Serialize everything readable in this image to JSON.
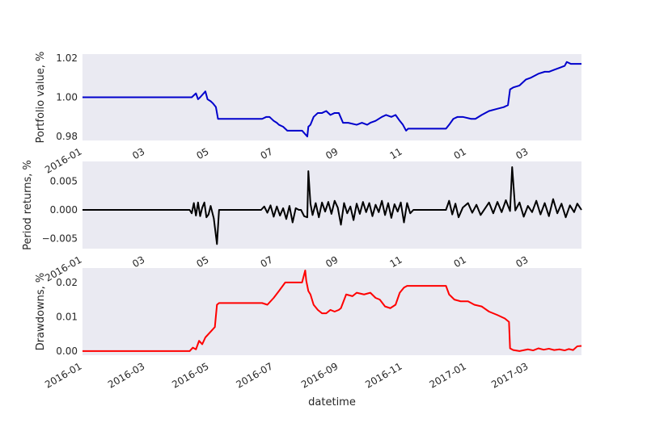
{
  "chart_data": [
    {
      "type": "line",
      "ylabel": "Portfolio value, %",
      "ylim": [
        0.978,
        1.022
      ],
      "yticks": [
        0.98,
        1.0,
        1.02
      ],
      "ytick_labels": [
        "0.98",
        "1.00",
        "1.02"
      ],
      "xlim": [
        "2016-01-01",
        "2017-04-20"
      ],
      "xticks": [
        "2016-01-01",
        "2016-03-01",
        "2016-05-01",
        "2016-07-01",
        "2016-09-01",
        "2016-11-01",
        "2017-01-01",
        "2017-03-01"
      ],
      "xtick_labels": [
        "2016-01",
        "03",
        "05",
        "07",
        "09",
        "11",
        "01",
        "03"
      ],
      "grid": false,
      "color": "#0000cc",
      "x": [
        "2016-01-01",
        "2016-04-14",
        "2016-04-18",
        "2016-04-20",
        "2016-04-22",
        "2016-04-27",
        "2016-04-29",
        "2016-05-02",
        "2016-05-04",
        "2016-05-07",
        "2016-05-09",
        "2016-05-12",
        "2016-06-20",
        "2016-06-24",
        "2016-06-27",
        "2016-07-01",
        "2016-07-04",
        "2016-07-06",
        "2016-07-10",
        "2016-07-14",
        "2016-07-20",
        "2016-07-26",
        "2016-07-28",
        "2016-08-02",
        "2016-08-03",
        "2016-08-05",
        "2016-08-08",
        "2016-08-12",
        "2016-08-16",
        "2016-08-20",
        "2016-08-24",
        "2016-08-28",
        "2016-09-01",
        "2016-09-05",
        "2016-09-10",
        "2016-09-18",
        "2016-09-23",
        "2016-09-28",
        "2016-10-01",
        "2016-10-06",
        "2016-10-12",
        "2016-10-16",
        "2016-10-21",
        "2016-10-25",
        "2016-10-29",
        "2016-11-01",
        "2016-11-04",
        "2016-11-06",
        "2016-11-10",
        "2016-12-12",
        "2016-12-15",
        "2016-12-19",
        "2016-12-23",
        "2016-12-28",
        "2017-01-05",
        "2017-01-09",
        "2017-01-15",
        "2017-01-22",
        "2017-01-29",
        "2017-02-05",
        "2017-02-09",
        "2017-02-11",
        "2017-02-14",
        "2017-02-20",
        "2017-02-26",
        "2017-03-03",
        "2017-03-10",
        "2017-03-16",
        "2017-03-20",
        "2017-03-25",
        "2017-03-30",
        "2017-04-04",
        "2017-04-06",
        "2017-04-10",
        "2017-04-14",
        "2017-04-20"
      ],
      "values": [
        1.0,
        1.0,
        1.002,
        0.999,
        1.0,
        1.003,
        0.999,
        0.998,
        0.997,
        0.995,
        0.989,
        0.989,
        0.989,
        0.99,
        0.99,
        0.988,
        0.987,
        0.986,
        0.985,
        0.983,
        0.983,
        0.983,
        0.983,
        0.98,
        0.985,
        0.986,
        0.99,
        0.992,
        0.992,
        0.993,
        0.991,
        0.992,
        0.992,
        0.987,
        0.987,
        0.986,
        0.987,
        0.986,
        0.987,
        0.988,
        0.99,
        0.991,
        0.99,
        0.991,
        0.988,
        0.986,
        0.983,
        0.984,
        0.984,
        0.984,
        0.986,
        0.989,
        0.99,
        0.99,
        0.989,
        0.989,
        0.991,
        0.993,
        0.994,
        0.995,
        0.996,
        1.004,
        1.005,
        1.006,
        1.009,
        1.01,
        1.012,
        1.013,
        1.013,
        1.014,
        1.015,
        1.016,
        1.018,
        1.017,
        1.017,
        1.017
      ]
    },
    {
      "type": "line",
      "ylabel": "Period returns, %",
      "ylim": [
        -0.0068,
        0.0085
      ],
      "yticks": [
        -0.005,
        0.0,
        0.005
      ],
      "ytick_labels": [
        "−0.005",
        "0.000",
        "0.005"
      ],
      "xlim": [
        "2016-01-01",
        "2017-04-20"
      ],
      "xticks": [
        "2016-01-01",
        "2016-03-01",
        "2016-05-01",
        "2016-07-01",
        "2016-09-01",
        "2016-11-01",
        "2017-01-01",
        "2017-03-01"
      ],
      "xtick_labels": [
        "2016-01",
        "03",
        "05",
        "07",
        "09",
        "11",
        "01",
        "03"
      ],
      "grid": false,
      "color": "#000000",
      "x": [
        "2016-01-01",
        "2016-04-12",
        "2016-04-14",
        "2016-04-16",
        "2016-04-18",
        "2016-04-20",
        "2016-04-22",
        "2016-04-24",
        "2016-04-26",
        "2016-04-28",
        "2016-04-30",
        "2016-05-02",
        "2016-05-05",
        "2016-05-08",
        "2016-05-10",
        "2016-06-19",
        "2016-06-22",
        "2016-06-25",
        "2016-06-28",
        "2016-07-01",
        "2016-07-04",
        "2016-07-07",
        "2016-07-10",
        "2016-07-13",
        "2016-07-16",
        "2016-07-19",
        "2016-07-22",
        "2016-07-25",
        "2016-07-27",
        "2016-07-30",
        "2016-08-02",
        "2016-08-03",
        "2016-08-05",
        "2016-08-07",
        "2016-08-10",
        "2016-08-13",
        "2016-08-16",
        "2016-08-19",
        "2016-08-22",
        "2016-08-25",
        "2016-08-28",
        "2016-08-31",
        "2016-09-03",
        "2016-09-06",
        "2016-09-09",
        "2016-09-12",
        "2016-09-15",
        "2016-09-18",
        "2016-09-21",
        "2016-09-24",
        "2016-09-27",
        "2016-09-30",
        "2016-10-03",
        "2016-10-06",
        "2016-10-09",
        "2016-10-12",
        "2016-10-15",
        "2016-10-18",
        "2016-10-21",
        "2016-10-24",
        "2016-10-27",
        "2016-10-30",
        "2016-11-02",
        "2016-11-05",
        "2016-11-08",
        "2016-11-11",
        "2016-12-12",
        "2016-12-15",
        "2016-12-18",
        "2016-12-21",
        "2016-12-24",
        "2016-12-28",
        "2017-01-02",
        "2017-01-06",
        "2017-01-10",
        "2017-01-14",
        "2017-01-18",
        "2017-01-22",
        "2017-01-26",
        "2017-01-30",
        "2017-02-03",
        "2017-02-07",
        "2017-02-11",
        "2017-02-13",
        "2017-02-16",
        "2017-02-20",
        "2017-02-24",
        "2017-02-28",
        "2017-03-04",
        "2017-03-08",
        "2017-03-12",
        "2017-03-16",
        "2017-03-20",
        "2017-03-24",
        "2017-03-28",
        "2017-04-01",
        "2017-04-05",
        "2017-04-09",
        "2017-04-13",
        "2017-04-16",
        "2017-04-20"
      ],
      "values": [
        0.0,
        0.0,
        -0.0006,
        0.0012,
        -0.001,
        0.0013,
        -0.0011,
        0.0004,
        0.0013,
        -0.0013,
        -0.0008,
        0.0007,
        -0.0015,
        -0.006,
        0.0,
        0.0,
        0.0006,
        -0.0005,
        0.0008,
        -0.0012,
        0.0006,
        -0.001,
        0.0003,
        -0.0016,
        0.0007,
        -0.0022,
        0.0003,
        0.0,
        0.0,
        -0.0011,
        -0.0013,
        0.0068,
        0.0011,
        -0.0009,
        0.0012,
        -0.0013,
        0.0013,
        -0.0003,
        0.0014,
        -0.0007,
        0.0016,
        0.0004,
        -0.0026,
        0.0012,
        -0.0006,
        0.0006,
        -0.0018,
        0.0011,
        -0.0007,
        0.0014,
        -0.0004,
        0.0012,
        -0.0011,
        0.0009,
        -0.0004,
        0.0016,
        -0.0009,
        0.0012,
        -0.0014,
        0.001,
        -0.0003,
        0.0013,
        -0.0022,
        0.0012,
        -0.0006,
        0.0,
        0.0,
        0.0016,
        -0.0008,
        0.0011,
        -0.0013,
        0.0004,
        0.0012,
        -0.0005,
        0.0009,
        -0.0009,
        0.0002,
        0.0013,
        -0.0006,
        0.0014,
        -0.0004,
        0.0017,
        -0.0002,
        0.0075,
        -0.0001,
        0.0013,
        -0.0012,
        0.0007,
        -0.0004,
        0.0016,
        -0.0008,
        0.0012,
        -0.0011,
        0.0019,
        -0.0006,
        0.0011,
        -0.0013,
        0.0008,
        -0.0004,
        0.0011,
        0.0
      ]
    },
    {
      "type": "line",
      "ylabel": "Drawdowns, %",
      "xlabel": "datetime",
      "ylim": [
        -0.0012,
        0.0242
      ],
      "yticks": [
        0.0,
        0.01,
        0.02
      ],
      "ytick_labels": [
        "0.00",
        "0.01",
        "0.02"
      ],
      "xlim": [
        "2016-01-01",
        "2017-04-20"
      ],
      "xticks": [
        "2016-01-01",
        "2016-03-01",
        "2016-05-01",
        "2016-07-01",
        "2016-09-01",
        "2016-11-01",
        "2017-01-01",
        "2017-03-01"
      ],
      "xtick_labels": [
        "2016-01",
        "2016-03",
        "2016-05",
        "2016-07",
        "2016-09",
        "2016-11",
        "2017-01",
        "2017-03"
      ],
      "grid": false,
      "color": "#ff0000",
      "x": [
        "2016-01-01",
        "2016-04-12",
        "2016-04-15",
        "2016-04-18",
        "2016-04-21",
        "2016-04-24",
        "2016-04-27",
        "2016-04-30",
        "2016-05-03",
        "2016-05-06",
        "2016-05-08",
        "2016-05-10",
        "2016-06-20",
        "2016-06-25",
        "2016-07-01",
        "2016-07-06",
        "2016-07-12",
        "2016-07-16",
        "2016-07-28",
        "2016-07-31",
        "2016-08-01",
        "2016-08-03",
        "2016-08-05",
        "2016-08-08",
        "2016-08-12",
        "2016-08-16",
        "2016-08-20",
        "2016-08-24",
        "2016-08-28",
        "2016-09-01",
        "2016-09-03",
        "2016-09-08",
        "2016-09-14",
        "2016-09-18",
        "2016-09-25",
        "2016-10-01",
        "2016-10-06",
        "2016-10-10",
        "2016-10-15",
        "2016-10-20",
        "2016-10-25",
        "2016-10-29",
        "2016-11-02",
        "2016-11-05",
        "2016-11-08",
        "2016-12-12",
        "2016-12-15",
        "2016-12-20",
        "2016-12-26",
        "2017-01-02",
        "2017-01-08",
        "2017-01-15",
        "2017-01-22",
        "2017-01-30",
        "2017-02-06",
        "2017-02-10",
        "2017-02-11",
        "2017-02-14",
        "2017-02-20",
        "2017-02-28",
        "2017-03-05",
        "2017-03-10",
        "2017-03-15",
        "2017-03-20",
        "2017-03-25",
        "2017-03-30",
        "2017-04-04",
        "2017-04-08",
        "2017-04-12",
        "2017-04-16",
        "2017-04-20"
      ],
      "values": [
        0.0,
        0.0,
        0.001,
        0.0005,
        0.003,
        0.002,
        0.004,
        0.005,
        0.006,
        0.007,
        0.0135,
        0.014,
        0.014,
        0.0135,
        0.0155,
        0.0175,
        0.02,
        0.02,
        0.02,
        0.0235,
        0.0205,
        0.0175,
        0.0165,
        0.0135,
        0.012,
        0.011,
        0.011,
        0.012,
        0.0115,
        0.012,
        0.0125,
        0.0165,
        0.016,
        0.017,
        0.0165,
        0.017,
        0.0155,
        0.015,
        0.013,
        0.0125,
        0.0135,
        0.017,
        0.0185,
        0.019,
        0.019,
        0.019,
        0.0165,
        0.015,
        0.0145,
        0.0145,
        0.0135,
        0.013,
        0.0115,
        0.0105,
        0.0095,
        0.0085,
        0.0008,
        0.0003,
        0.0,
        0.0005,
        0.0002,
        0.0008,
        0.0004,
        0.0007,
        0.0003,
        0.0005,
        0.0002,
        0.0006,
        0.0003,
        0.0014,
        0.0015
      ]
    }
  ]
}
